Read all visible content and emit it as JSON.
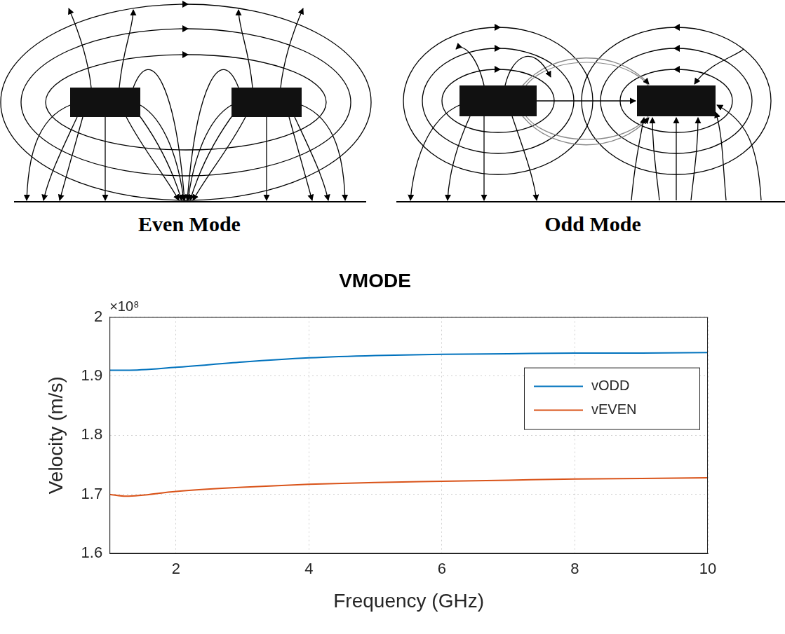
{
  "panels": [
    {
      "title": "Even Mode"
    },
    {
      "title": "Odd Mode"
    }
  ],
  "chart_data": {
    "type": "line",
    "title": "VMODE",
    "x_label": "Frequency (GHz)",
    "y_label": "Velocity (m/s)",
    "annotation": "×10⁸",
    "x": [
      1,
      1.25,
      2,
      3,
      4,
      5,
      6,
      7,
      8,
      9,
      10
    ],
    "series": [
      {
        "name": "vODD",
        "color": "#0072bd",
        "values": [
          1.91,
          1.91,
          1.915,
          1.924,
          1.931,
          1.935,
          1.937,
          1.938,
          1.939,
          1.939,
          1.94
        ]
      },
      {
        "name": "vEVEN",
        "color": "#d95319",
        "values": [
          1.7,
          1.697,
          1.705,
          1.712,
          1.717,
          1.72,
          1.722,
          1.724,
          1.726,
          1.727,
          1.728
        ]
      }
    ],
    "xlim": [
      1,
      10
    ],
    "xticks": [
      2,
      4,
      6,
      8,
      10
    ],
    "ylim": [
      1.6,
      2
    ],
    "yticks": [
      1.6,
      1.7,
      1.8,
      1.9,
      2
    ],
    "grid": true,
    "legend": "upper right"
  }
}
